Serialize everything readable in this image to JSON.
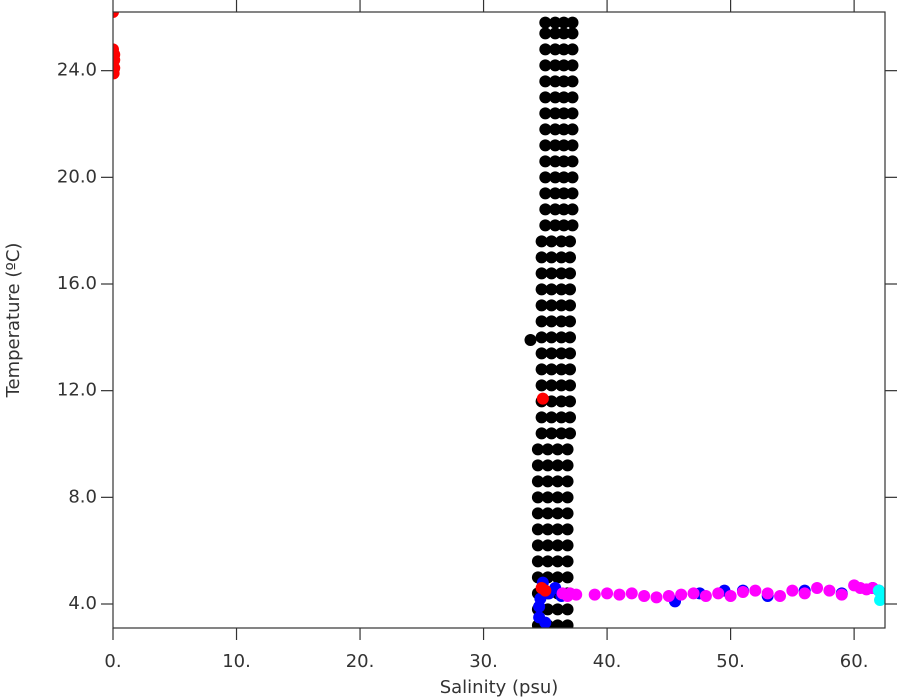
{
  "chart_data": {
    "type": "scatter",
    "x_label": "Salinity (psu)",
    "y_label": "Temperature (ºC)",
    "xlim": [
      0,
      62.5
    ],
    "ylim": [
      3.1,
      26.2
    ],
    "xticks": [
      {
        "value": 0,
        "label": "0."
      },
      {
        "value": 10,
        "label": "10."
      },
      {
        "value": 20,
        "label": "20."
      },
      {
        "value": 30,
        "label": "30."
      },
      {
        "value": 40,
        "label": "40."
      },
      {
        "value": 50,
        "label": "50."
      },
      {
        "value": 60,
        "label": "60."
      }
    ],
    "yticks": [
      {
        "value": 4,
        "label": "4.0"
      },
      {
        "value": 8,
        "label": "8.0"
      },
      {
        "value": 12,
        "label": "12.0"
      },
      {
        "value": 16,
        "label": "16.0"
      },
      {
        "value": 20,
        "label": "20.0"
      },
      {
        "value": 24,
        "label": "24.0"
      }
    ],
    "grid": false,
    "series": [
      {
        "color": "#000000",
        "x": [
          34.4,
          35.2,
          36.0,
          36.8,
          34.4,
          35.2,
          36.0,
          36.8,
          34.4,
          35.2,
          36.0,
          36.8,
          34.4,
          35.2,
          36.0,
          36.8,
          34.4,
          35.2,
          36.0,
          36.8,
          34.4,
          35.2,
          36.0,
          36.8,
          34.4,
          35.2,
          36.0,
          36.8,
          34.4,
          35.2,
          36.0,
          36.8,
          34.4,
          35.2,
          36.0,
          36.8,
          34.4,
          35.2,
          36.0,
          36.8,
          34.4,
          35.2,
          36.0,
          36.8,
          34.4,
          35.2,
          36.0,
          36.8,
          34.7,
          35.5,
          36.3,
          37.0,
          34.7,
          35.5,
          36.3,
          37.0,
          34.7,
          35.5,
          36.3,
          37.0,
          34.7,
          35.5,
          36.3,
          37.0,
          34.7,
          35.5,
          36.3,
          37.0,
          34.7,
          35.5,
          36.3,
          37.0,
          34.7,
          35.5,
          36.3,
          37.0,
          34.7,
          35.5,
          36.3,
          37.0,
          34.7,
          35.5,
          36.3,
          37.0,
          34.7,
          35.5,
          36.3,
          37.0,
          34.7,
          35.5,
          36.3,
          37.0,
          34.7,
          35.5,
          36.3,
          37.0,
          34.7,
          35.5,
          36.3,
          37.0,
          35.0,
          35.8,
          36.5,
          37.2,
          35.0,
          35.8,
          36.5,
          37.2,
          35.0,
          35.8,
          36.5,
          37.2,
          35.0,
          35.8,
          36.5,
          37.2,
          35.0,
          35.8,
          36.5,
          37.2,
          35.0,
          35.8,
          36.5,
          37.2,
          35.0,
          35.8,
          36.5,
          37.2,
          35.0,
          35.8,
          36.5,
          37.2,
          35.0,
          35.8,
          36.5,
          37.2,
          35.0,
          35.8,
          36.5,
          37.2,
          35.0,
          35.8,
          36.5,
          37.2,
          35.0,
          35.8,
          36.5,
          37.2,
          35.0,
          35.8,
          36.5,
          37.2,
          35.0,
          35.8,
          36.5,
          37.2,
          33.8
        ],
        "y": [
          3.2,
          3.2,
          3.2,
          3.2,
          3.8,
          3.8,
          3.8,
          3.8,
          4.4,
          4.4,
          4.4,
          4.4,
          5.0,
          5.0,
          5.0,
          5.0,
          5.6,
          5.6,
          5.6,
          5.6,
          6.2,
          6.2,
          6.2,
          6.2,
          6.8,
          6.8,
          6.8,
          6.8,
          7.4,
          7.4,
          7.4,
          7.4,
          8.0,
          8.0,
          8.0,
          8.0,
          8.6,
          8.6,
          8.6,
          8.6,
          9.2,
          9.2,
          9.2,
          9.2,
          9.8,
          9.8,
          9.8,
          9.8,
          10.4,
          10.4,
          10.4,
          10.4,
          11.0,
          11.0,
          11.0,
          11.0,
          11.6,
          11.6,
          11.6,
          11.6,
          12.2,
          12.2,
          12.2,
          12.2,
          12.8,
          12.8,
          12.8,
          12.8,
          13.4,
          13.4,
          13.4,
          13.4,
          14.0,
          14.0,
          14.0,
          14.0,
          14.6,
          14.6,
          14.6,
          14.6,
          15.2,
          15.2,
          15.2,
          15.2,
          15.8,
          15.8,
          15.8,
          15.8,
          16.4,
          16.4,
          16.4,
          16.4,
          17.0,
          17.0,
          17.0,
          17.0,
          17.6,
          17.6,
          17.6,
          17.6,
          18.2,
          18.2,
          18.2,
          18.2,
          18.8,
          18.8,
          18.8,
          18.8,
          19.4,
          19.4,
          19.4,
          19.4,
          20.0,
          20.0,
          20.0,
          20.0,
          20.6,
          20.6,
          20.6,
          20.6,
          21.2,
          21.2,
          21.2,
          21.2,
          21.8,
          21.8,
          21.8,
          21.8,
          22.4,
          22.4,
          22.4,
          22.4,
          23.0,
          23.0,
          23.0,
          23.0,
          23.6,
          23.6,
          23.6,
          23.6,
          24.2,
          24.2,
          24.2,
          24.2,
          24.8,
          24.8,
          24.8,
          24.8,
          25.4,
          25.4,
          25.4,
          25.4,
          25.8,
          25.8,
          25.8,
          25.8,
          13.9
        ]
      },
      {
        "color": "#0000ff",
        "x": [
          34.5,
          34.6,
          34.8,
          35.3,
          35.8,
          36.3,
          34.5,
          35.0,
          45.5,
          47.5,
          49.5,
          51,
          53,
          56,
          59,
          61.5,
          62
        ],
        "y": [
          3.5,
          4.2,
          4.8,
          4.4,
          4.6,
          4.3,
          3.9,
          3.3,
          4.1,
          4.4,
          4.5,
          4.5,
          4.3,
          4.5,
          4.4,
          4.6,
          4.5
        ]
      },
      {
        "color": "#ff00ff",
        "x": [
          36.4,
          36.8,
          37,
          37.5,
          39,
          40,
          41,
          42,
          43,
          44,
          45,
          46,
          47,
          48,
          49,
          50,
          51,
          52,
          53,
          54,
          55,
          56,
          57,
          58,
          59,
          60,
          60.5,
          61,
          61.5
        ],
        "y": [
          4.4,
          4.3,
          4.4,
          4.35,
          4.35,
          4.4,
          4.35,
          4.4,
          4.3,
          4.25,
          4.3,
          4.35,
          4.4,
          4.3,
          4.4,
          4.3,
          4.45,
          4.5,
          4.4,
          4.3,
          4.5,
          4.4,
          4.6,
          4.5,
          4.35,
          4.7,
          4.6,
          4.55,
          4.6
        ]
      },
      {
        "color": "#00ffff",
        "x": [
          62,
          62.3,
          62.1
        ],
        "y": [
          4.5,
          4.3,
          4.15
        ]
      },
      {
        "color": "#ff0000",
        "x": [
          0,
          0,
          0.1,
          0.1,
          0.05,
          0.1,
          34.8,
          34.7,
          35.0
        ],
        "y": [
          26.2,
          24.8,
          24.4,
          24.1,
          23.9,
          24.6,
          11.7,
          4.6,
          4.5
        ]
      }
    ]
  }
}
